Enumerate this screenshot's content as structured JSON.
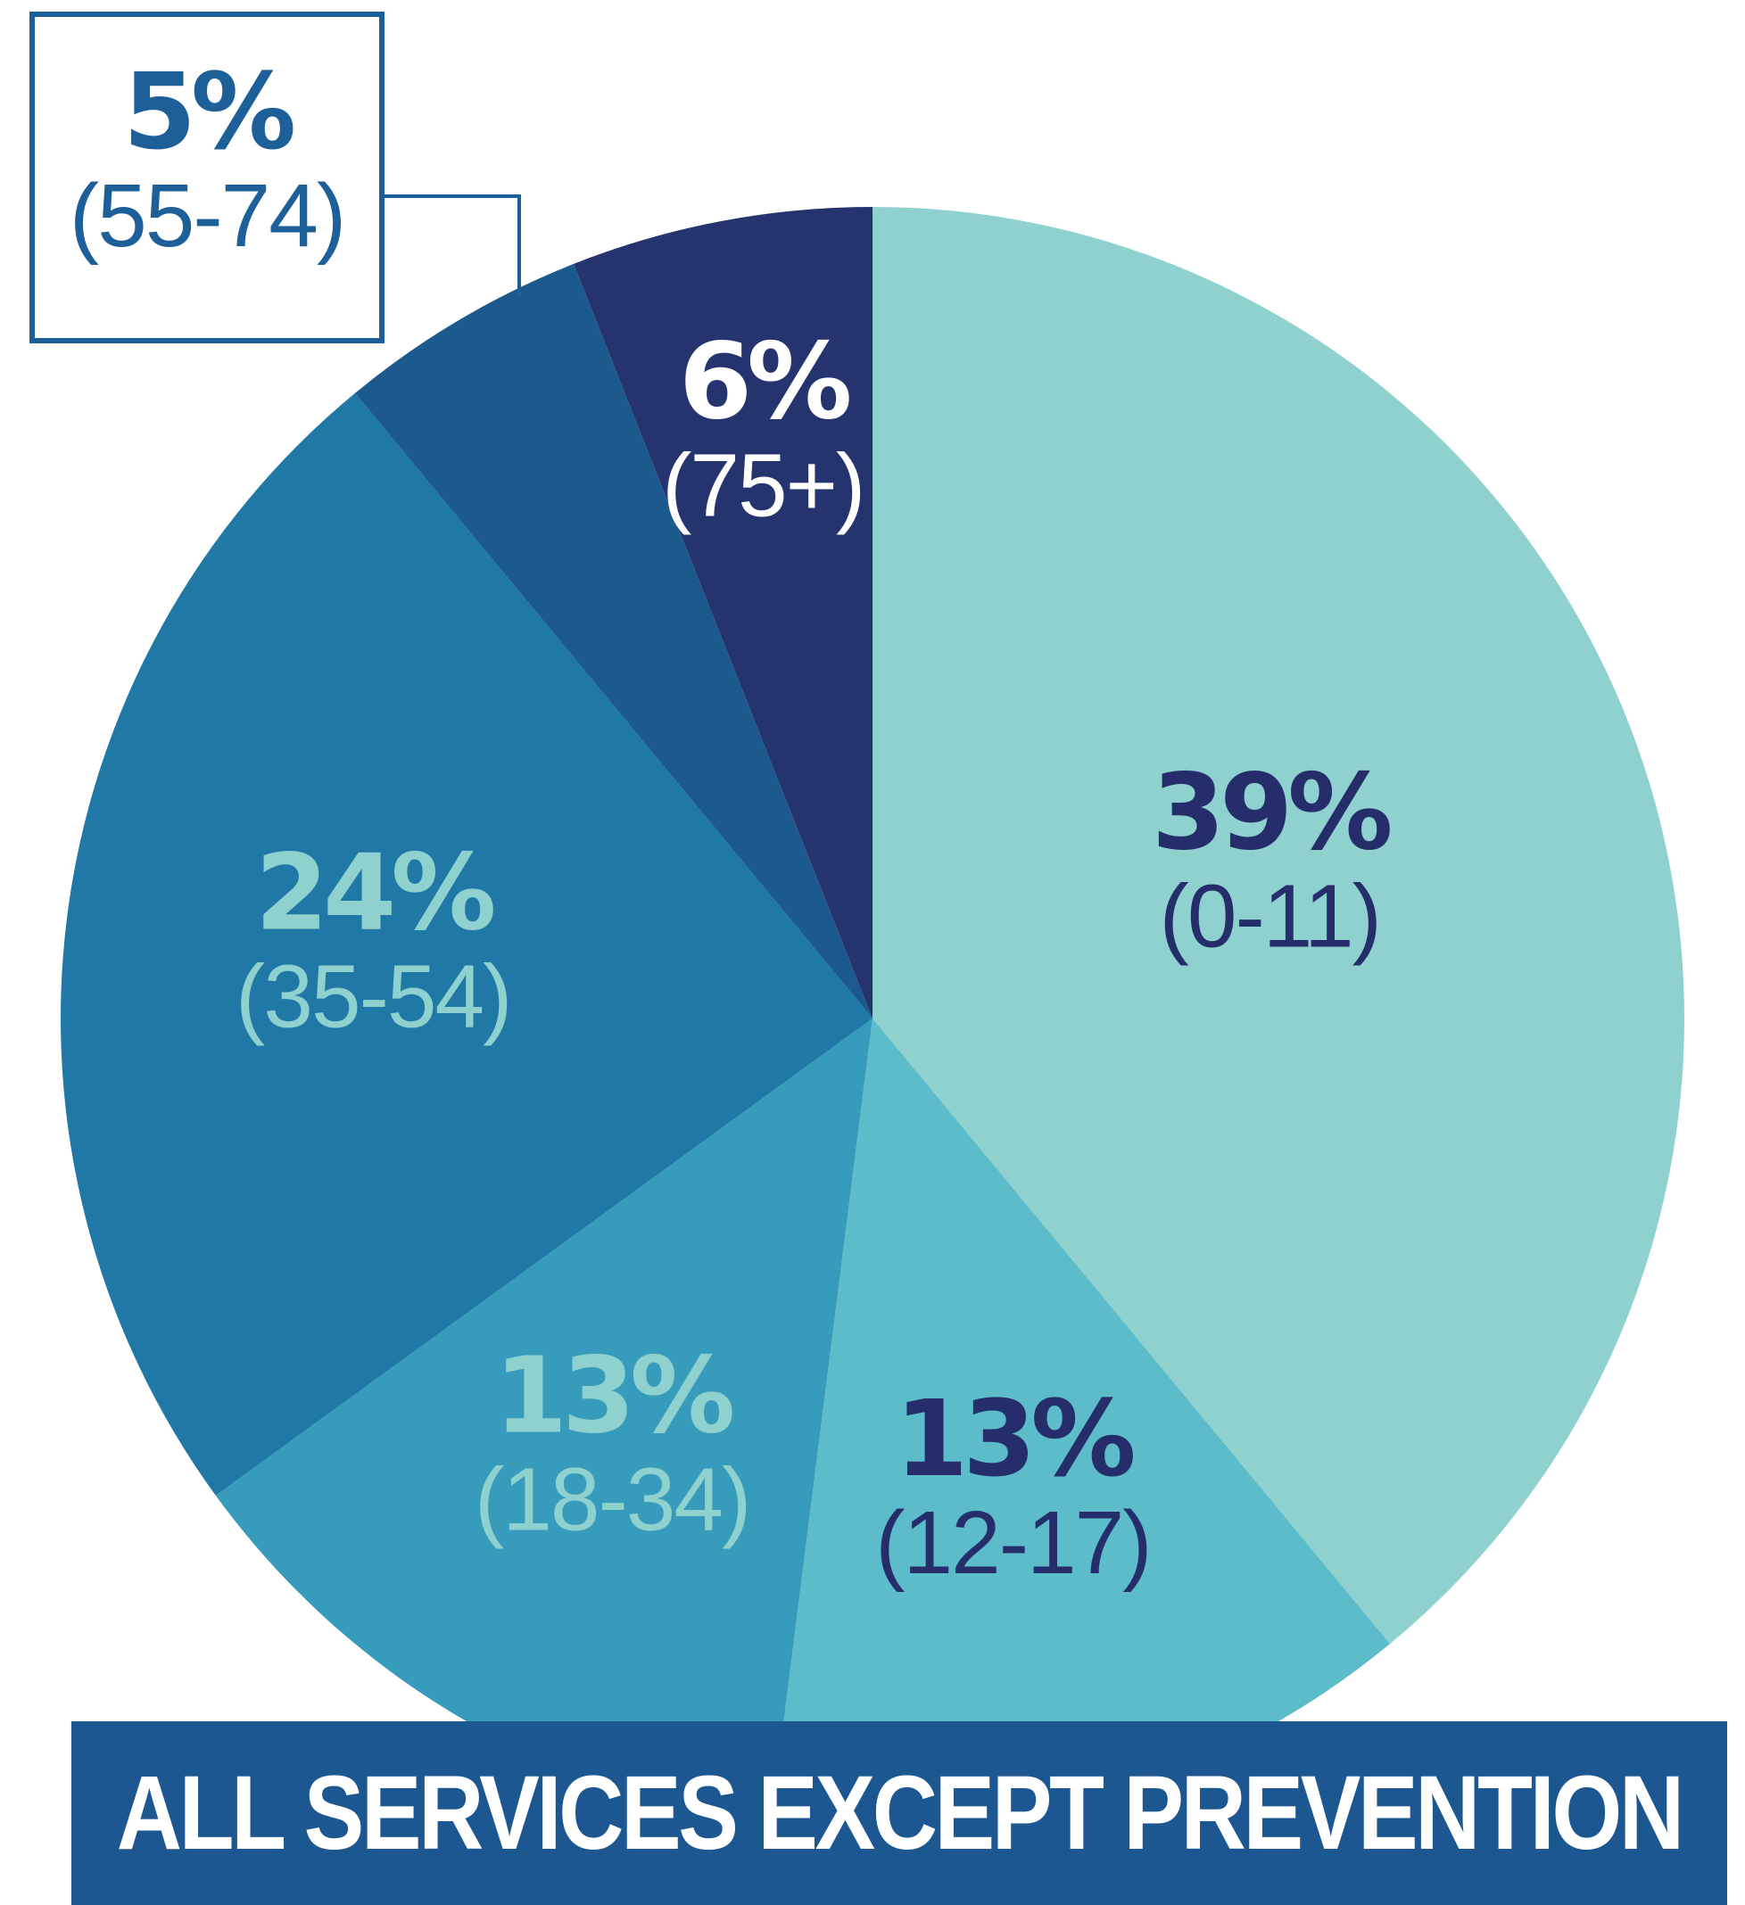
{
  "chart_data": {
    "type": "pie",
    "title": "ALL SERVICES EXCEPT PREVENTION",
    "slices": [
      {
        "label": "(0-11)",
        "percent_label": "39%",
        "value": 39,
        "color": "#8fd1cf",
        "text_color": "#252e6b"
      },
      {
        "label": "(12-17)",
        "percent_label": "13%",
        "value": 13,
        "color": "#5cbcc9",
        "text_color": "#252e6b"
      },
      {
        "label": "(18-34)",
        "percent_label": "13%",
        "value": 13,
        "color": "#379bbb",
        "text_color": "#8fd1cf"
      },
      {
        "label": "(35-54)",
        "percent_label": "24%",
        "value": 24,
        "color": "#1f78a6",
        "text_color": "#8fd1cf"
      },
      {
        "label": "(55-74)",
        "percent_label": "5%",
        "value": 5,
        "color": "#1c5a8e",
        "text_color": "#1d5f99",
        "callout": true
      },
      {
        "label": "(75+)",
        "percent_label": "6%",
        "value": 6,
        "color": "#25346e",
        "text_color": "#ffffff"
      }
    ]
  }
}
